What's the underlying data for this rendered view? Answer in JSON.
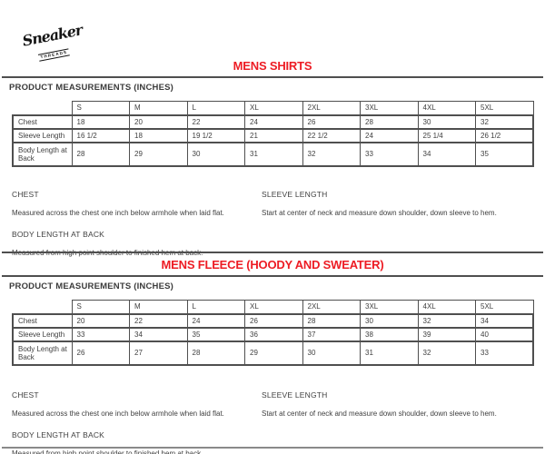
{
  "logo": {
    "script": "Sneaker",
    "sub": "THREADS"
  },
  "colors": {
    "accent_red": "#ed1c24",
    "text": "#3d3d3d",
    "table_border": "#4f4f4f",
    "rule_gray": "#8a8a8a"
  },
  "sections": [
    {
      "title": "MENS SHIRTS",
      "table_heading": "PRODUCT MEASUREMENTS (INCHES)",
      "sizes": [
        "S",
        "M",
        "L",
        "XL",
        "2XL",
        "3XL",
        "4XL",
        "5XL"
      ],
      "rows": [
        {
          "label": "Chest",
          "values": [
            "18",
            "20",
            "22",
            "24",
            "26",
            "28",
            "30",
            "32"
          ]
        },
        {
          "label": "Sleeve Length",
          "values": [
            "16 1/2",
            "18",
            "19 1/2",
            "21",
            "22 1/2",
            "24",
            "25 1/4",
            "26 1/2"
          ]
        },
        {
          "label": "Body Length at Back",
          "values": [
            "28",
            "29",
            "30",
            "31",
            "32",
            "33",
            "34",
            "35"
          ]
        }
      ],
      "notes_left": [
        {
          "heading": "CHEST",
          "text": "Measured across the chest one inch below armhole when laid flat."
        },
        {
          "heading": "BODY LENGTH AT BACK",
          "text": "Measured from high point shoulder to finished hem at back."
        }
      ],
      "notes_right": [
        {
          "heading": "SLEEVE LENGTH",
          "text": "Start at center of neck and measure down shoulder, down sleeve to hem."
        }
      ]
    },
    {
      "title": "MENS FLEECE (HOODY AND SWEATER)",
      "table_heading": "PRODUCT MEASUREMENTS (INCHES)",
      "sizes": [
        "S",
        "M",
        "L",
        "XL",
        "2XL",
        "3XL",
        "4XL",
        "5XL"
      ],
      "rows": [
        {
          "label": "Chest",
          "values": [
            "20",
            "22",
            "24",
            "26",
            "28",
            "30",
            "32",
            "34"
          ]
        },
        {
          "label": "Sleeve Length",
          "values": [
            "33",
            "34",
            "35",
            "36",
            "37",
            "38",
            "39",
            "40"
          ]
        },
        {
          "label": "Body Length at Back",
          "values": [
            "26",
            "27",
            "28",
            "29",
            "30",
            "31",
            "32",
            "33"
          ]
        }
      ],
      "notes_left": [
        {
          "heading": "CHEST",
          "text": "Measured across the chest one inch below armhole when laid flat."
        },
        {
          "heading": "BODY LENGTH AT BACK",
          "text": "Measured from high point shoulder to finished hem at back."
        }
      ],
      "notes_right": [
        {
          "heading": "SLEEVE LENGTH",
          "text": "Start at center of neck and measure down shoulder, down sleeve to hem."
        }
      ]
    }
  ]
}
